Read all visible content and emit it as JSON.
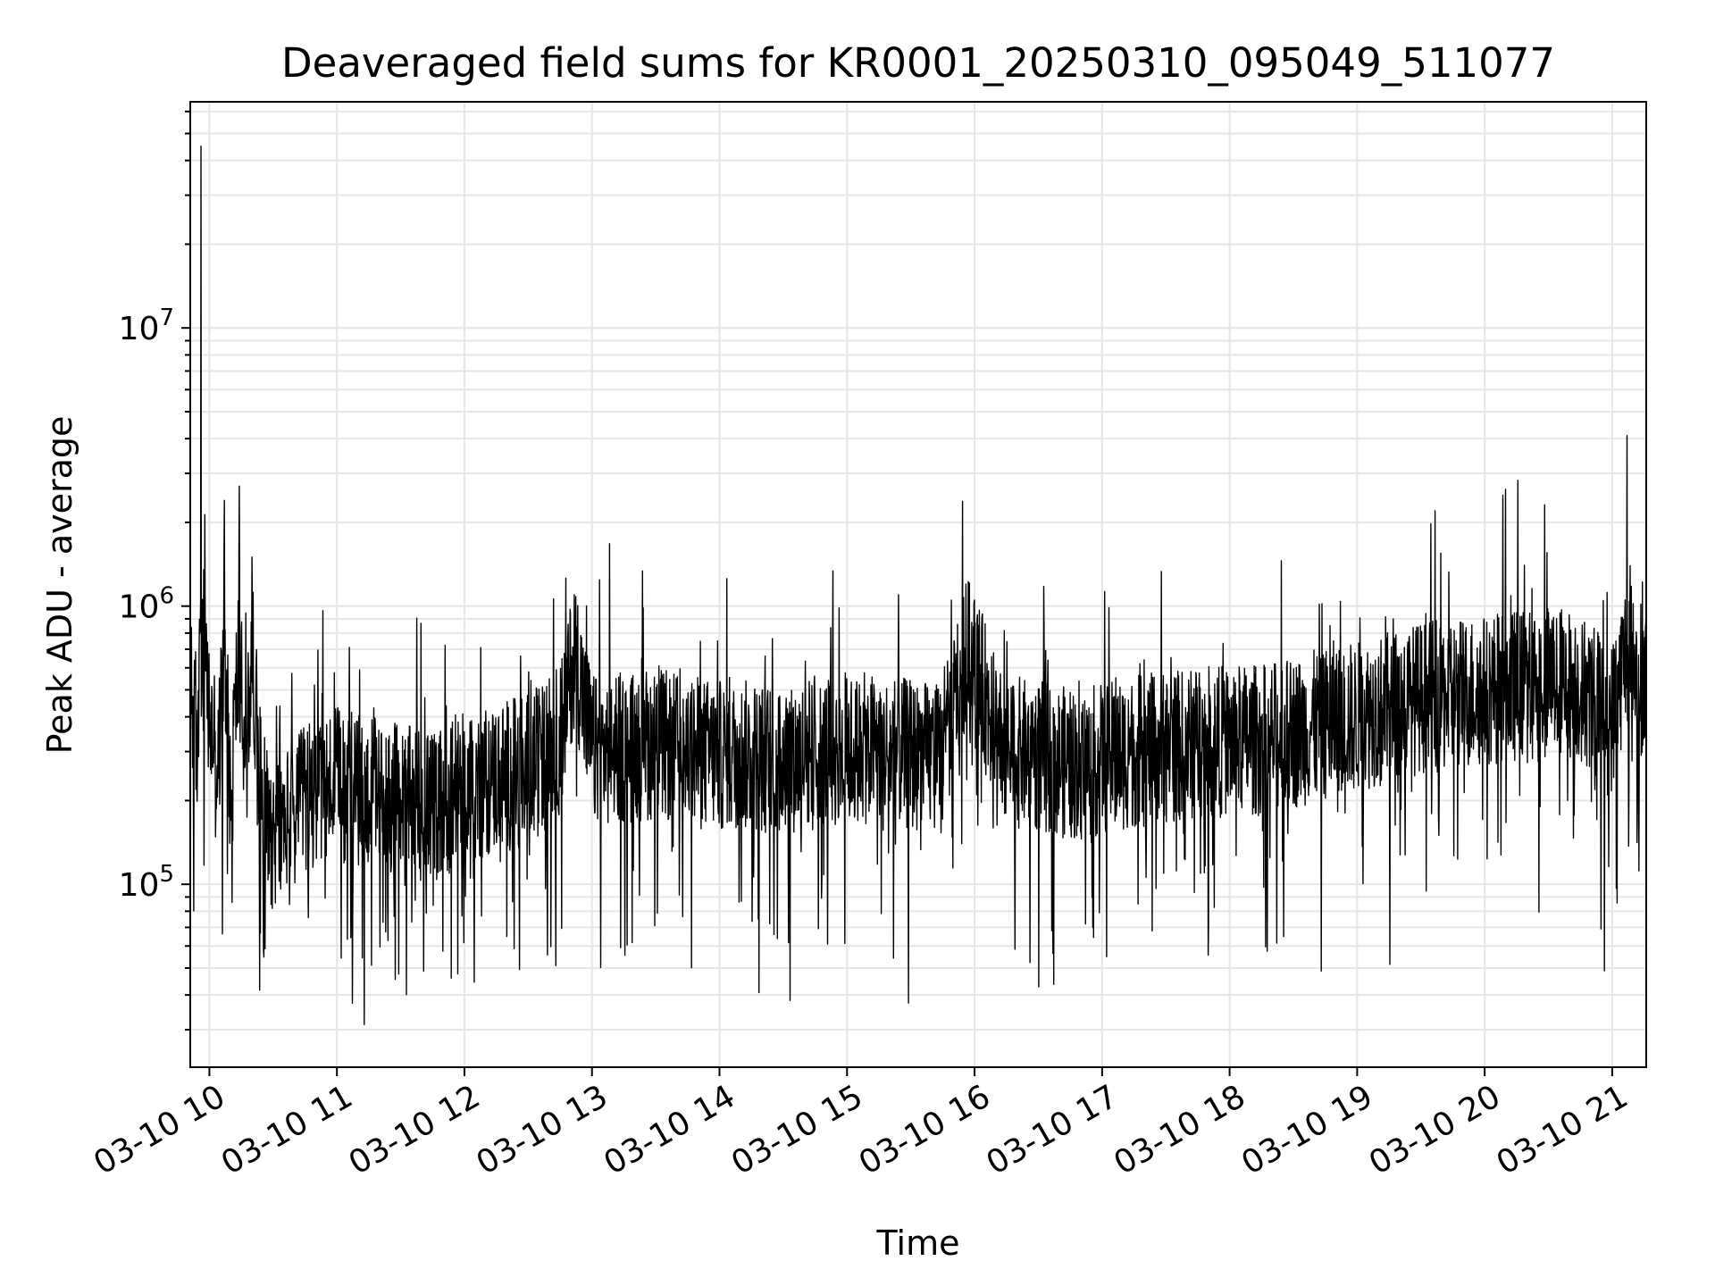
{
  "chart_data": {
    "type": "line",
    "title": "Deaveraged field sums for KR0001_20250310_095049_511077",
    "xlabel": "Time",
    "ylabel": "Peak ADU - average",
    "y_scale": "log",
    "ylim": [
      22000,
      65000000
    ],
    "xlim": [
      "2025-03-10 09:51",
      "2025-03-10 21:16"
    ],
    "grid": true,
    "line_color": "#000000",
    "x_tick_labels": [
      "03-10 10",
      "03-10 11",
      "03-10 12",
      "03-10 13",
      "03-10 14",
      "03-10 15",
      "03-10 16",
      "03-10 17",
      "03-10 18",
      "03-10 19",
      "03-10 20",
      "03-10 21"
    ],
    "y_ticks": [
      {
        "value": 100000,
        "base": "10",
        "exp": "5"
      },
      {
        "value": 1000000,
        "base": "10",
        "exp": "6"
      },
      {
        "value": 10000000,
        "base": "10",
        "exp": "7"
      }
    ],
    "series": [
      {
        "x": [
          "2025-03-10 09:51",
          "2025-03-10 09:54",
          "2025-03-10 09:56",
          "2025-03-10 10:00",
          "2025-03-10 10:04",
          "2025-03-10 10:07",
          "2025-03-10 10:10",
          "2025-03-10 10:14",
          "2025-03-10 10:17",
          "2025-03-10 10:20",
          "2025-03-10 10:25",
          "2025-03-10 10:30",
          "2025-03-10 10:40",
          "2025-03-10 10:50",
          "2025-03-10 11:00",
          "2025-03-10 11:15",
          "2025-03-10 11:30",
          "2025-03-10 11:45",
          "2025-03-10 12:00",
          "2025-03-10 12:15",
          "2025-03-10 12:30",
          "2025-03-10 12:45",
          "2025-03-10 12:52",
          "2025-03-10 13:00",
          "2025-03-10 13:15",
          "2025-03-10 13:30",
          "2025-03-10 13:45",
          "2025-03-10 14:00",
          "2025-03-10 14:15",
          "2025-03-10 14:30",
          "2025-03-10 14:45",
          "2025-03-10 15:00",
          "2025-03-10 15:15",
          "2025-03-10 15:30",
          "2025-03-10 15:45",
          "2025-03-10 15:56",
          "2025-03-10 16:15",
          "2025-03-10 16:30",
          "2025-03-10 16:45",
          "2025-03-10 17:00",
          "2025-03-10 17:15",
          "2025-03-10 17:30",
          "2025-03-10 17:45",
          "2025-03-10 18:00",
          "2025-03-10 18:15",
          "2025-03-10 18:30",
          "2025-03-10 18:45",
          "2025-03-10 19:00",
          "2025-03-10 19:15",
          "2025-03-10 19:30",
          "2025-03-10 19:45",
          "2025-03-10 20:00",
          "2025-03-10 20:15",
          "2025-03-10 20:30",
          "2025-03-10 20:45",
          "2025-03-10 21:00",
          "2025-03-10 21:07",
          "2025-03-10 21:16"
        ],
        "y": [
          500000,
          300000,
          45000000,
          400000,
          250000,
          2400000,
          220000,
          2700000,
          250000,
          1500000,
          200000,
          150000,
          180000,
          220000,
          230000,
          210000,
          200000,
          190000,
          220000,
          240000,
          260000,
          330000,
          800000,
          300000,
          310000,
          320000,
          300000,
          290000,
          290000,
          280000,
          300000,
          300000,
          310000,
          290000,
          280000,
          1200000,
          300000,
          290000,
          270000,
          280000,
          300000,
          310000,
          320000,
          330000,
          330000,
          350000,
          380000,
          400000,
          430000,
          470000,
          480000,
          500000,
          520000,
          540000,
          520000,
          400000,
          4100000,
          500000
        ]
      }
    ]
  }
}
